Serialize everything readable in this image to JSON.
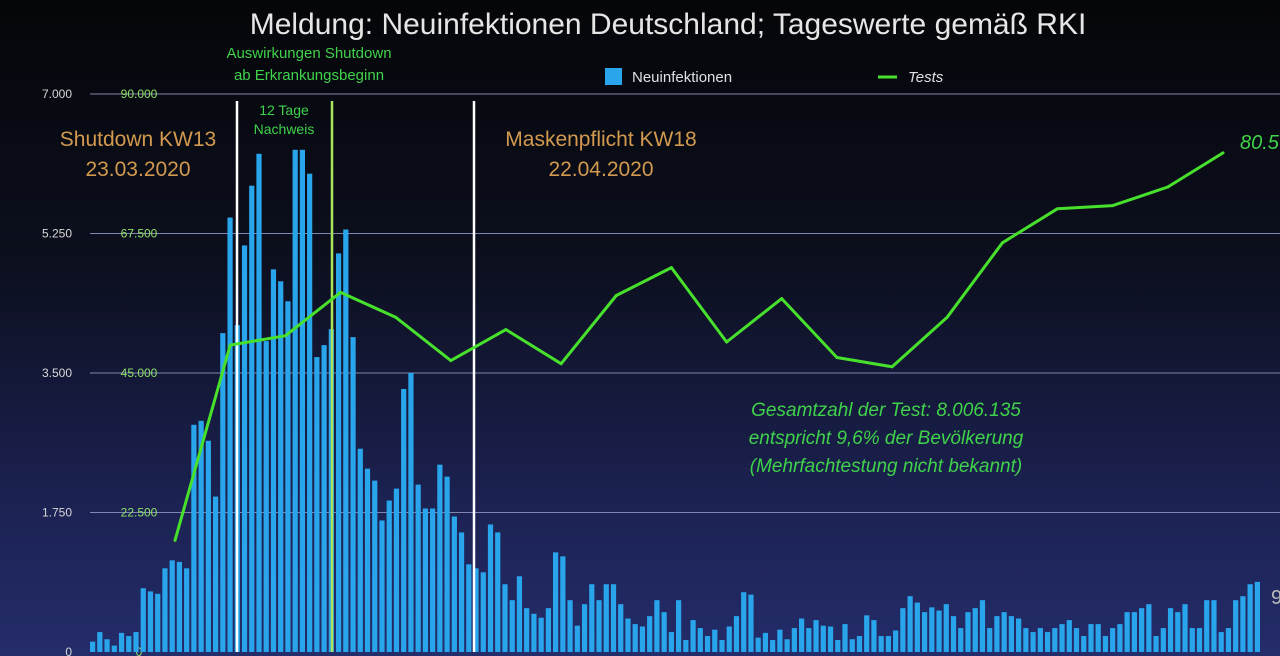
{
  "chart_data": {
    "type": "bar",
    "title": "Meldung: Neuinfektionen Deutschland; Tageswerte gemäß RKI",
    "left_axis": {
      "ticks": [
        "0",
        "1.750",
        "3.500",
        "5.250",
        "7.000"
      ],
      "tick_values": [
        0,
        1750,
        3500,
        5250,
        7000
      ],
      "ylim": [
        0,
        7000
      ]
    },
    "right_axis": {
      "ticks": [
        "0",
        "22.500",
        "45.000",
        "67.500",
        "90.000"
      ],
      "tick_values": [
        0,
        22500,
        45000,
        67500,
        90000
      ],
      "ylim": [
        0,
        90000
      ]
    },
    "grid": true,
    "legend": {
      "position": "top",
      "bar_label": "Neuinfektionen",
      "line_label": "Tests"
    },
    "series": [
      {
        "name": "Neuinfektionen",
        "kind": "bar",
        "axis": "left",
        "color": "#29a5ec",
        "values": [
          130,
          250,
          160,
          80,
          240,
          200,
          250,
          800,
          760,
          730,
          1050,
          1150,
          1130,
          1050,
          2850,
          2900,
          2650,
          1950,
          4000,
          5450,
          4100,
          5100,
          5850,
          6250,
          3900,
          4800,
          4650,
          4400,
          6300,
          6300,
          6000,
          3700,
          3850,
          4050,
          5000,
          5300,
          3950,
          2550,
          2300,
          2150,
          1650,
          1900,
          2050,
          3300,
          3500,
          2100,
          1800,
          1800,
          2350,
          2200,
          1700,
          1500,
          1100,
          1050,
          1000,
          1600,
          1500,
          850,
          650,
          950,
          550,
          480,
          430,
          550,
          1250,
          1200,
          650,
          330,
          600,
          850,
          650,
          850,
          850,
          600,
          420,
          350,
          320,
          450,
          650,
          500,
          250,
          650,
          150,
          400,
          300,
          200,
          280,
          150,
          320,
          450,
          750,
          720,
          180,
          240,
          150,
          280,
          160,
          300,
          420,
          300,
          400,
          330,
          320,
          150,
          350,
          160,
          200,
          460,
          400,
          200,
          200,
          270,
          550,
          700,
          620,
          500,
          560,
          520,
          600,
          450,
          300,
          500,
          550,
          650,
          300,
          450,
          500,
          450,
          420,
          300,
          250,
          300,
          250,
          300,
          350,
          400,
          300,
          200,
          350,
          350,
          200,
          300,
          350,
          500,
          500,
          550,
          600,
          200,
          300,
          550,
          500,
          600,
          300,
          300,
          650,
          650,
          250,
          300,
          650,
          700,
          850,
          880
        ],
        "note": "bar heights estimated from gridlines"
      },
      {
        "name": "Tests",
        "kind": "line",
        "axis": "right",
        "color": "#47e02c",
        "values": [
          18000,
          49500,
          51000,
          58000,
          54000,
          47000,
          52000,
          46500,
          57500,
          62000,
          50000,
          57000,
          47500,
          46000,
          54000,
          66000,
          71500,
          72000,
          75000,
          80500
        ],
        "end_label": "80.5"
      }
    ],
    "annotations": {
      "shutdown": [
        "Shutdown KW13",
        "23.03.2020"
      ],
      "masken": [
        "Maskenpflicht KW18",
        "22.04.2020"
      ],
      "auswirkungen": [
        "Auswirkungen Shutdown",
        "ab Erkrankungsbeginn"
      ],
      "tage": [
        "12 Tage",
        "Nachweis"
      ],
      "gesamt": [
        "Gesamtzahl der Test: 8.006.135",
        "entspricht 9,6% der Bevölkerung",
        "(Mehrfachtestung nicht bekannt)"
      ],
      "right_cut": "9"
    }
  }
}
